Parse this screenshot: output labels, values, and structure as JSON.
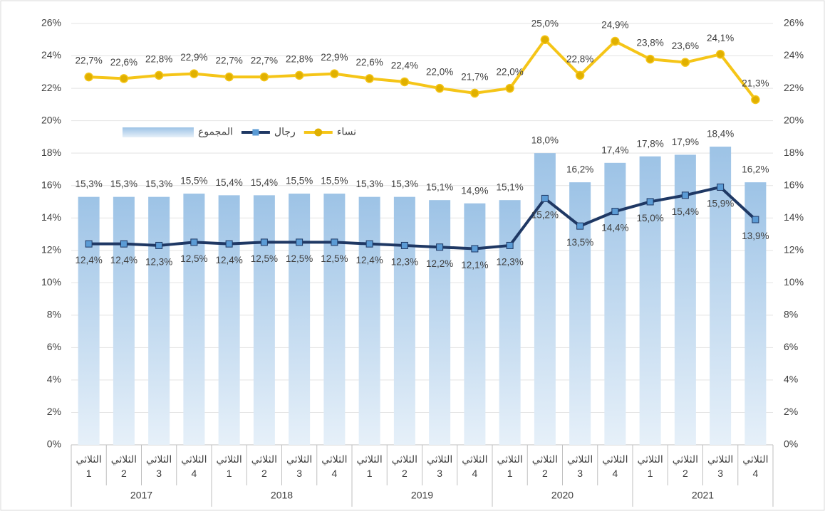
{
  "chart_data": {
    "type": "combo",
    "groups": [
      {
        "label": "2017",
        "categories": [
          "الثلاثي 1",
          "الثلاثي 2",
          "الثلاثي 3",
          "الثلاثي 4"
        ]
      },
      {
        "label": "2018",
        "categories": [
          "الثلاثي 1",
          "الثلاثي 2",
          "الثلاثي 3",
          "الثلاثي 4"
        ]
      },
      {
        "label": "2019",
        "categories": [
          "الثلاثي 1",
          "الثلاثي 2",
          "الثلاثي 3",
          "الثلاثي 4"
        ]
      },
      {
        "label": "2020",
        "categories": [
          "الثلاثي 1",
          "الثلاثي 2",
          "الثلاثي 3",
          "الثلاثي 4"
        ]
      },
      {
        "label": "2021",
        "categories": [
          "الثلاثي 1",
          "الثلاثي 2",
          "الثلاثي 3",
          "الثلاثي 4"
        ]
      }
    ],
    "series": [
      {
        "name": "المجموع",
        "type": "bar",
        "color": "#9dc3e6",
        "values": [
          15.3,
          15.3,
          15.3,
          15.5,
          15.4,
          15.4,
          15.5,
          15.5,
          15.3,
          15.3,
          15.1,
          14.9,
          15.1,
          18.0,
          16.2,
          17.4,
          17.8,
          17.9,
          18.4,
          16.2
        ],
        "value_labels": [
          "15,3%",
          "15,3%",
          "15,3%",
          "15,5%",
          "15,4%",
          "15,4%",
          "15,5%",
          "15,5%",
          "15,3%",
          "15,3%",
          "15,1%",
          "14,9%",
          "15,1%",
          "18,0%",
          "16,2%",
          "17,4%",
          "17,8%",
          "17,9%",
          "18,4%",
          "16,2%"
        ]
      },
      {
        "name": "رجال",
        "type": "line",
        "color": "#1f3864",
        "marker_color": "#5b9bd5",
        "values": [
          12.4,
          12.4,
          12.3,
          12.5,
          12.4,
          12.5,
          12.5,
          12.5,
          12.4,
          12.3,
          12.2,
          12.1,
          12.3,
          15.2,
          13.5,
          14.4,
          15.0,
          15.4,
          15.9,
          13.9
        ],
        "value_labels": [
          "12,4%",
          "12,4%",
          "12,3%",
          "12,5%",
          "12,4%",
          "12,5%",
          "12,5%",
          "12,5%",
          "12,4%",
          "12,3%",
          "12,2%",
          "12,1%",
          "12,3%",
          "15,2%",
          "13,5%",
          "14,4%",
          "15,0%",
          "15,4%",
          "15,9%",
          "13,9%"
        ]
      },
      {
        "name": "نساء",
        "type": "line",
        "color": "#f5c518",
        "marker_color": "#e0b000",
        "values": [
          22.7,
          22.6,
          22.8,
          22.9,
          22.7,
          22.7,
          22.8,
          22.9,
          22.6,
          22.4,
          22.0,
          21.7,
          22.0,
          25.0,
          22.8,
          24.9,
          23.8,
          23.6,
          24.1,
          21.3
        ],
        "value_labels": [
          "22,7%",
          "22,6%",
          "22,8%",
          "22,9%",
          "22,7%",
          "22,7%",
          "22,8%",
          "22,9%",
          "22,6%",
          "22,4%",
          "22,0%",
          "21,7%",
          "22,0%",
          "25,0%",
          "22,8%",
          "24,9%",
          "23,8%",
          "23,6%",
          "24,1%",
          "21,3%"
        ]
      }
    ],
    "ylim": [
      0,
      26
    ],
    "yticks": [
      {
        "value": 0,
        "label": "0%"
      },
      {
        "value": 2,
        "label": "2%"
      },
      {
        "value": 4,
        "label": "4%"
      },
      {
        "value": 6,
        "label": "6%"
      },
      {
        "value": 8,
        "label": "8%"
      },
      {
        "value": 10,
        "label": "10%"
      },
      {
        "value": 12,
        "label": "12%"
      },
      {
        "value": 14,
        "label": "14%"
      },
      {
        "value": 16,
        "label": "16%"
      },
      {
        "value": 18,
        "label": "18%"
      },
      {
        "value": 20,
        "label": "20%"
      },
      {
        "value": 22,
        "label": "22%"
      },
      {
        "value": 24,
        "label": "24%"
      },
      {
        "value": 26,
        "label": "26%"
      }
    ],
    "y2lim": [
      0,
      26
    ],
    "y2ticks": [
      {
        "value": 0,
        "label": "0%"
      },
      {
        "value": 2,
        "label": "2%"
      },
      {
        "value": 4,
        "label": "4%"
      },
      {
        "value": 6,
        "label": "6%"
      },
      {
        "value": 8,
        "label": "8%"
      },
      {
        "value": 10,
        "label": "10%"
      },
      {
        "value": 12,
        "label": "12%"
      },
      {
        "value": 14,
        "label": "14%"
      },
      {
        "value": 16,
        "label": "16%"
      },
      {
        "value": 18,
        "label": "18%"
      },
      {
        "value": 20,
        "label": "20%"
      },
      {
        "value": 22,
        "label": "22%"
      },
      {
        "value": 24,
        "label": "24%"
      },
      {
        "value": 26,
        "label": "26%"
      }
    ],
    "grid": true
  }
}
